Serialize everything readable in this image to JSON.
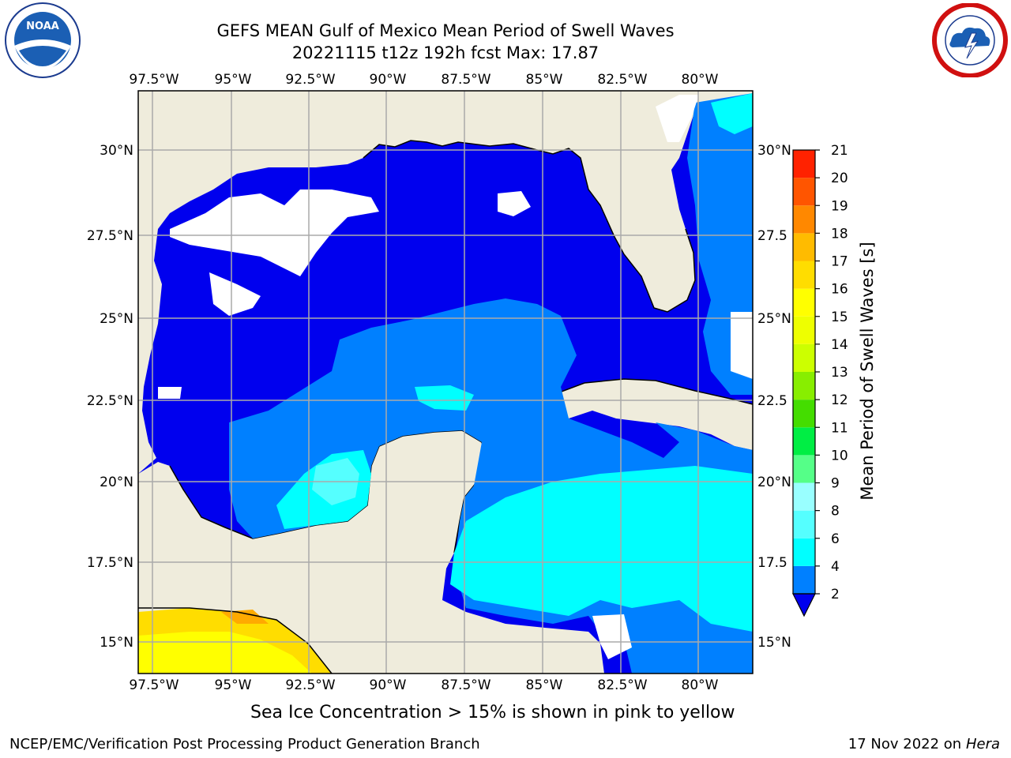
{
  "title_line1": "GEFS MEAN Gulf of Mexico Mean Period of Swell Waves",
  "title_line2": "20221115 t12z 192h fcst   Max: 17.87",
  "caption": "Sea Ice Concentration > 15% is shown in pink to yellow",
  "footer_left": "NCEP/EMC/Verification Post Processing Product Generation Branch",
  "footer_date": "17 Nov 2022 on",
  "footer_host": "Hera",
  "logos": {
    "left_icon": "noaa-logo",
    "left_text": "NOAA",
    "right_icon": "nws-logo"
  },
  "map": {
    "lon_labels": [
      "97.5°W",
      "95°W",
      "92.5°W",
      "90°W",
      "87.5°W",
      "85°W",
      "82.5°W",
      "80°W"
    ],
    "lat_labels": [
      "30°N",
      "27.5°N",
      "25°N",
      "22.5°N",
      "20°N",
      "17.5°N",
      "15°N"
    ],
    "lat_labels_right": [
      "30°N",
      "27.5",
      "25°N",
      "22.5",
      "20°N",
      "17.5",
      "15°N"
    ],
    "colors": {
      "land": "#efecdc",
      "blue": "#0000ee",
      "mid": "#0080ff",
      "cyan": "#00ffff",
      "light_cyan": "#55ffff",
      "grid": "#aaaaaa"
    }
  },
  "colorbar": {
    "label": "Mean Period of Swell Waves [s]",
    "ticks": [
      "2",
      "4",
      "6",
      "8",
      "9",
      "10",
      "11",
      "12",
      "13",
      "14",
      "15",
      "16",
      "17",
      "18",
      "19",
      "20",
      "21"
    ],
    "colors": [
      "#0080ff",
      "#00ffff",
      "#55ffff",
      "#99ffff",
      "#55ff88",
      "#00ee44",
      "#44dd00",
      "#88ee00",
      "#ccff00",
      "#eeff00",
      "#ffff00",
      "#ffdd00",
      "#ffbb00",
      "#ff8800",
      "#ff5500",
      "#ff2200",
      "#ff0000"
    ]
  }
}
